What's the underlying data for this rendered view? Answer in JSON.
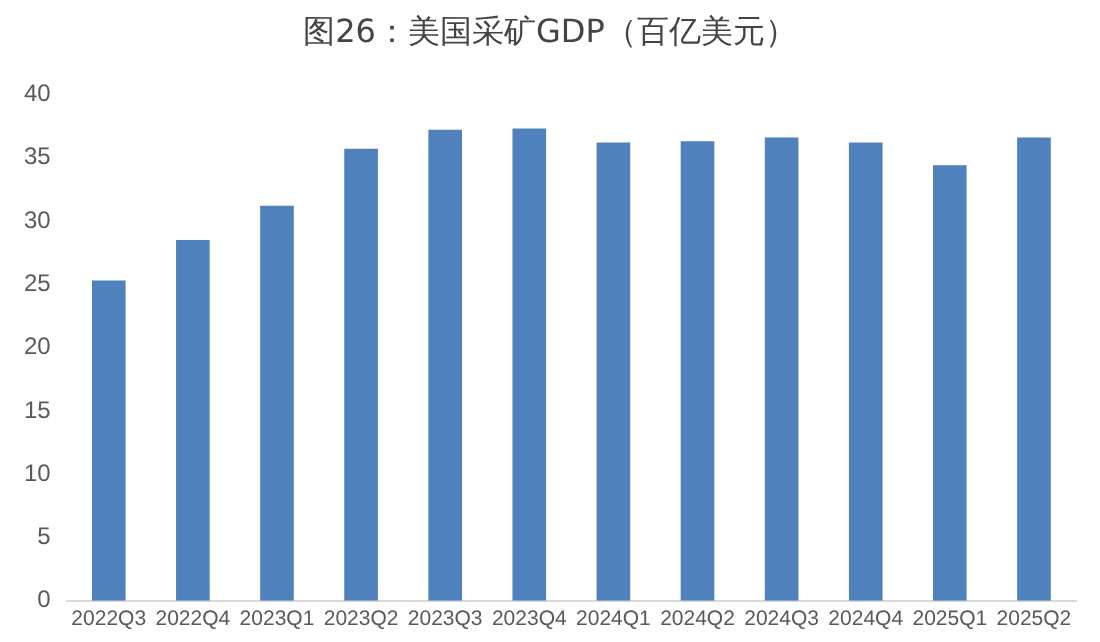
{
  "chart_data": {
    "type": "bar",
    "title": "图26：美国采矿GDP（百亿美元）",
    "categories": [
      "2022Q3",
      "2022Q4",
      "2023Q1",
      "2023Q2",
      "2023Q3",
      "2023Q4",
      "2024Q1",
      "2024Q2",
      "2024Q3",
      "2024Q4",
      "2025Q1",
      "2025Q2"
    ],
    "values": [
      25.3,
      28.5,
      31.2,
      35.7,
      37.2,
      37.3,
      36.2,
      36.3,
      36.6,
      36.2,
      34.4,
      36.6
    ],
    "color": "#4f81bd",
    "ylim": [
      0,
      40
    ],
    "yticks": [
      0,
      5,
      10,
      15,
      20,
      25,
      30,
      35,
      40
    ],
    "grid": false,
    "legend": false
  }
}
